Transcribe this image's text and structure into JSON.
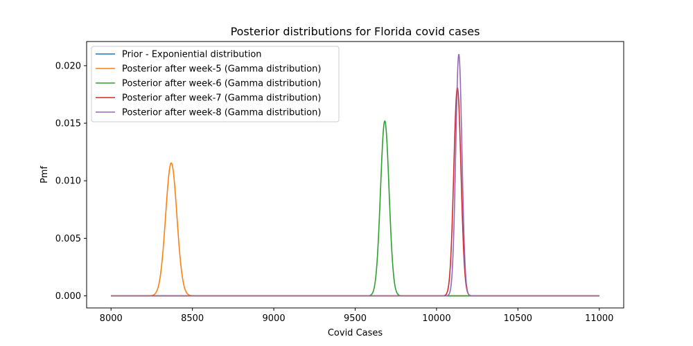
{
  "chart_data": {
    "type": "line",
    "title": "Posterior distributions for Florida covid cases",
    "xlabel": "Covid Cases",
    "ylabel": "Pmf",
    "xlim": [
      7850,
      11150
    ],
    "ylim": [
      -0.00105,
      0.0221
    ],
    "x_ticks": [
      8000,
      8500,
      9000,
      9500,
      10000,
      10500,
      11000
    ],
    "y_ticks": [
      0.0,
      0.005,
      0.01,
      0.015,
      0.02
    ],
    "x_tick_labels": [
      "8000",
      "8500",
      "9000",
      "9500",
      "10000",
      "10500",
      "11000"
    ],
    "y_tick_labels": [
      "0.000",
      "0.005",
      "0.010",
      "0.015",
      "0.020"
    ],
    "grid": false,
    "legend_position": "upper-left",
    "x_range": [
      8000,
      11000
    ],
    "series": [
      {
        "name": "Prior - Exponiential distribution",
        "color": "#1f77b4",
        "peak_x": null,
        "peak_y": 0.0,
        "sd": null
      },
      {
        "name": "Posterior after week-5 (Gamma distribution)",
        "color": "#ff7f0e",
        "peak_x": 8370,
        "peak_y": 0.01155,
        "sd": 34.5
      },
      {
        "name": "Posterior after week-6 (Gamma distribution)",
        "color": "#2ca02c",
        "peak_x": 9682,
        "peak_y": 0.0152,
        "sd": 26.2
      },
      {
        "name": "Posterior after week-7 (Gamma distribution)",
        "color": "#d62728",
        "peak_x": 10128,
        "peak_y": 0.0181,
        "sd": 22.0
      },
      {
        "name": "Posterior after week-8 (Gamma distribution)",
        "color": "#9467bd",
        "peak_x": 10137,
        "peak_y": 0.021,
        "sd": 19.0
      }
    ]
  }
}
